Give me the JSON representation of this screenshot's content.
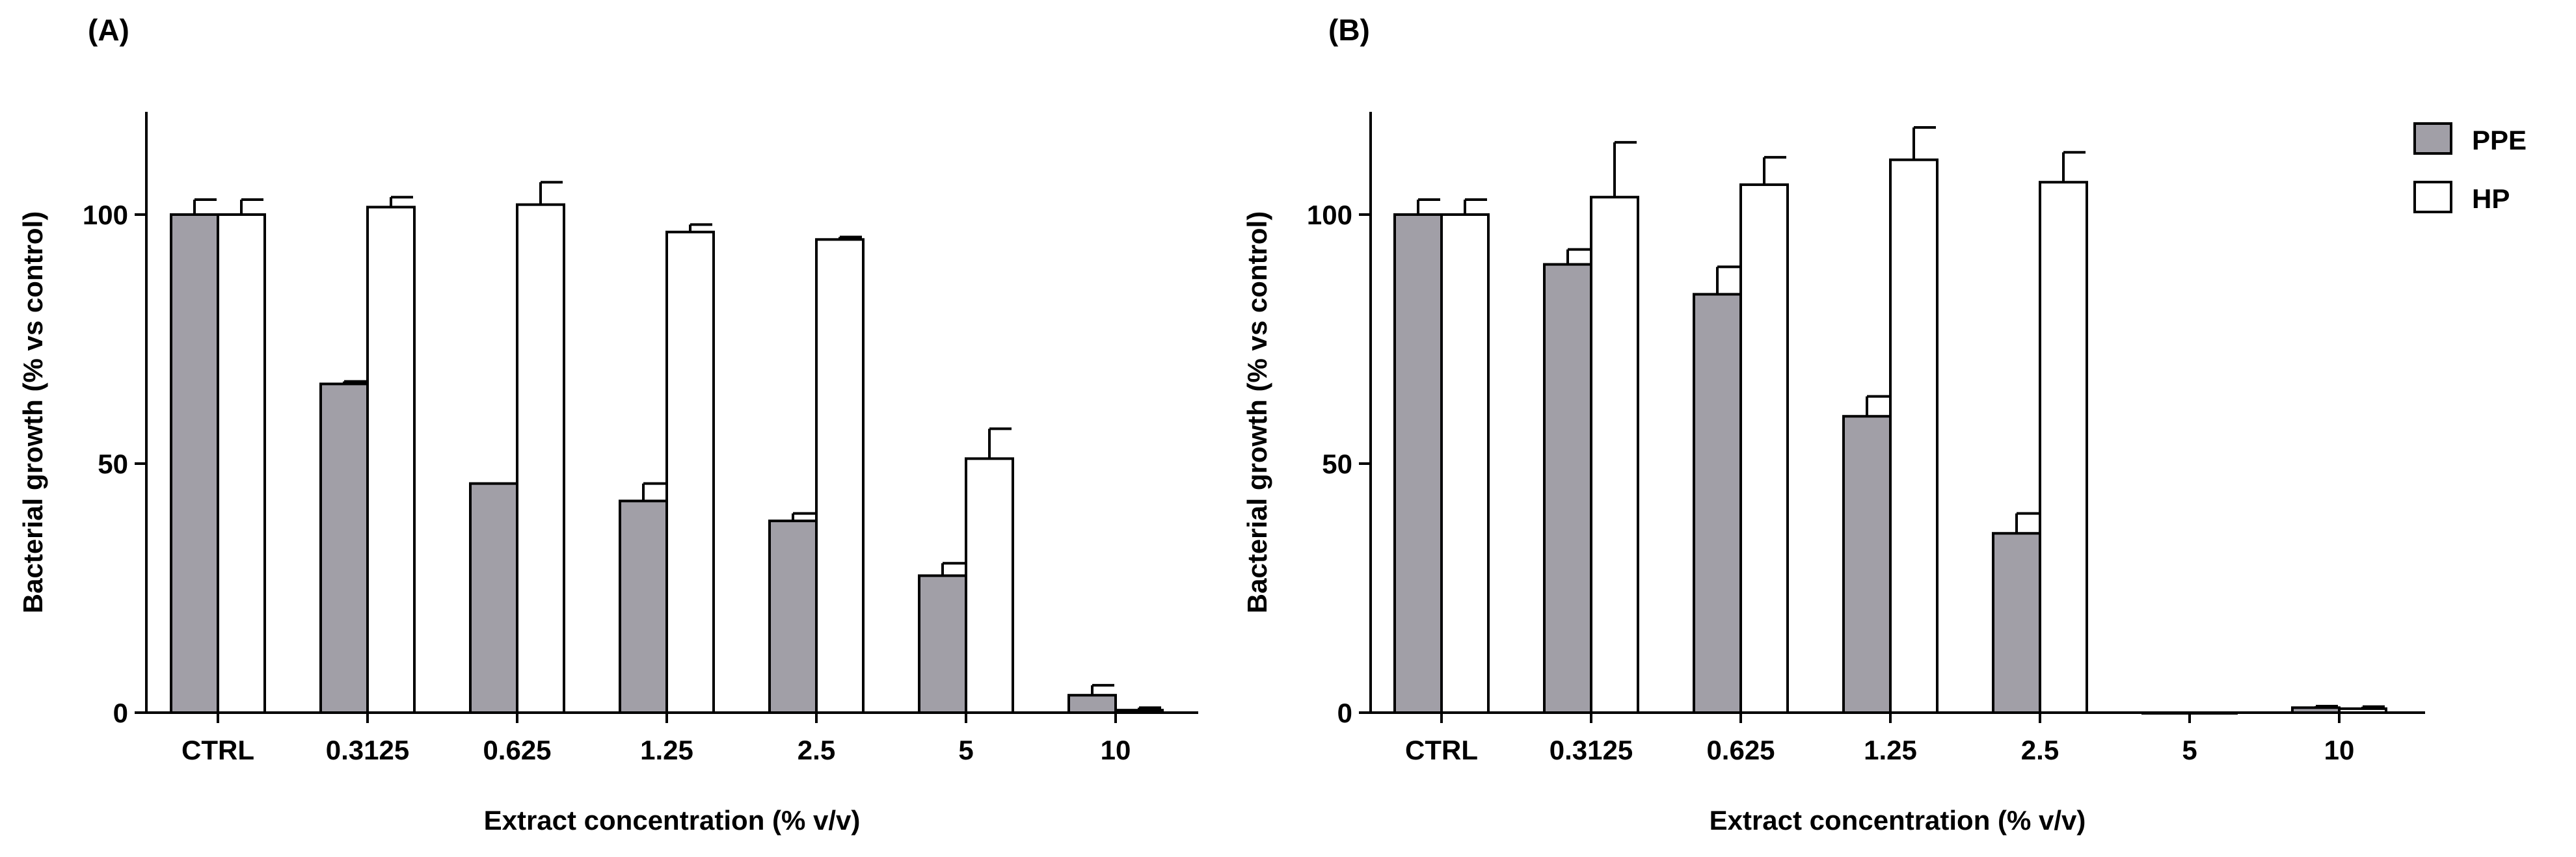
{
  "chart_data": [
    {
      "type": "bar",
      "panel_label": "(A)",
      "title": "",
      "xlabel": "Extract concentration (% v/v)",
      "ylabel": "Bacterial growth (% vs control)",
      "categories": [
        "CTRL",
        "0.3125",
        "0.625",
        "1.25",
        "2.5",
        "5",
        "10"
      ],
      "ylim": [
        0,
        120
      ],
      "yticks": [
        0,
        50,
        100
      ],
      "grid": false,
      "series": [
        {
          "name": "PPE",
          "color": "#a19fa7",
          "values": [
            100,
            66,
            46,
            42.5,
            38.5,
            27.5,
            3.5
          ],
          "errors": [
            3,
            0.5,
            0,
            3.5,
            1.5,
            2.5,
            2
          ]
        },
        {
          "name": "HP",
          "color": "#ffffff",
          "values": [
            100,
            101.5,
            102,
            96.5,
            95,
            51,
            0.5
          ],
          "errors": [
            3,
            2,
            4.5,
            1.5,
            0.5,
            6,
            0.5
          ]
        }
      ]
    },
    {
      "type": "bar",
      "panel_label": "(B)",
      "title": "",
      "xlabel": "Extract concentration (% v/v)",
      "ylabel": "Bacterial growth (% vs control)",
      "categories": [
        "CTRL",
        "0.3125",
        "0.625",
        "1.25",
        "2.5",
        "5",
        "10"
      ],
      "ylim": [
        0,
        120
      ],
      "yticks": [
        0,
        50,
        100
      ],
      "grid": false,
      "legend_position": "top-right",
      "series": [
        {
          "name": "PPE",
          "color": "#a19fa7",
          "values": [
            100,
            90,
            84,
            59.5,
            36,
            0,
            1
          ],
          "errors": [
            3,
            3,
            5.5,
            4,
            4,
            0,
            0.3
          ]
        },
        {
          "name": "HP",
          "color": "#ffffff",
          "values": [
            100,
            103.5,
            106,
            111,
            106.5,
            0,
            0.8
          ],
          "errors": [
            3,
            11,
            5.5,
            6.5,
            6,
            0,
            0.4
          ]
        }
      ]
    }
  ]
}
